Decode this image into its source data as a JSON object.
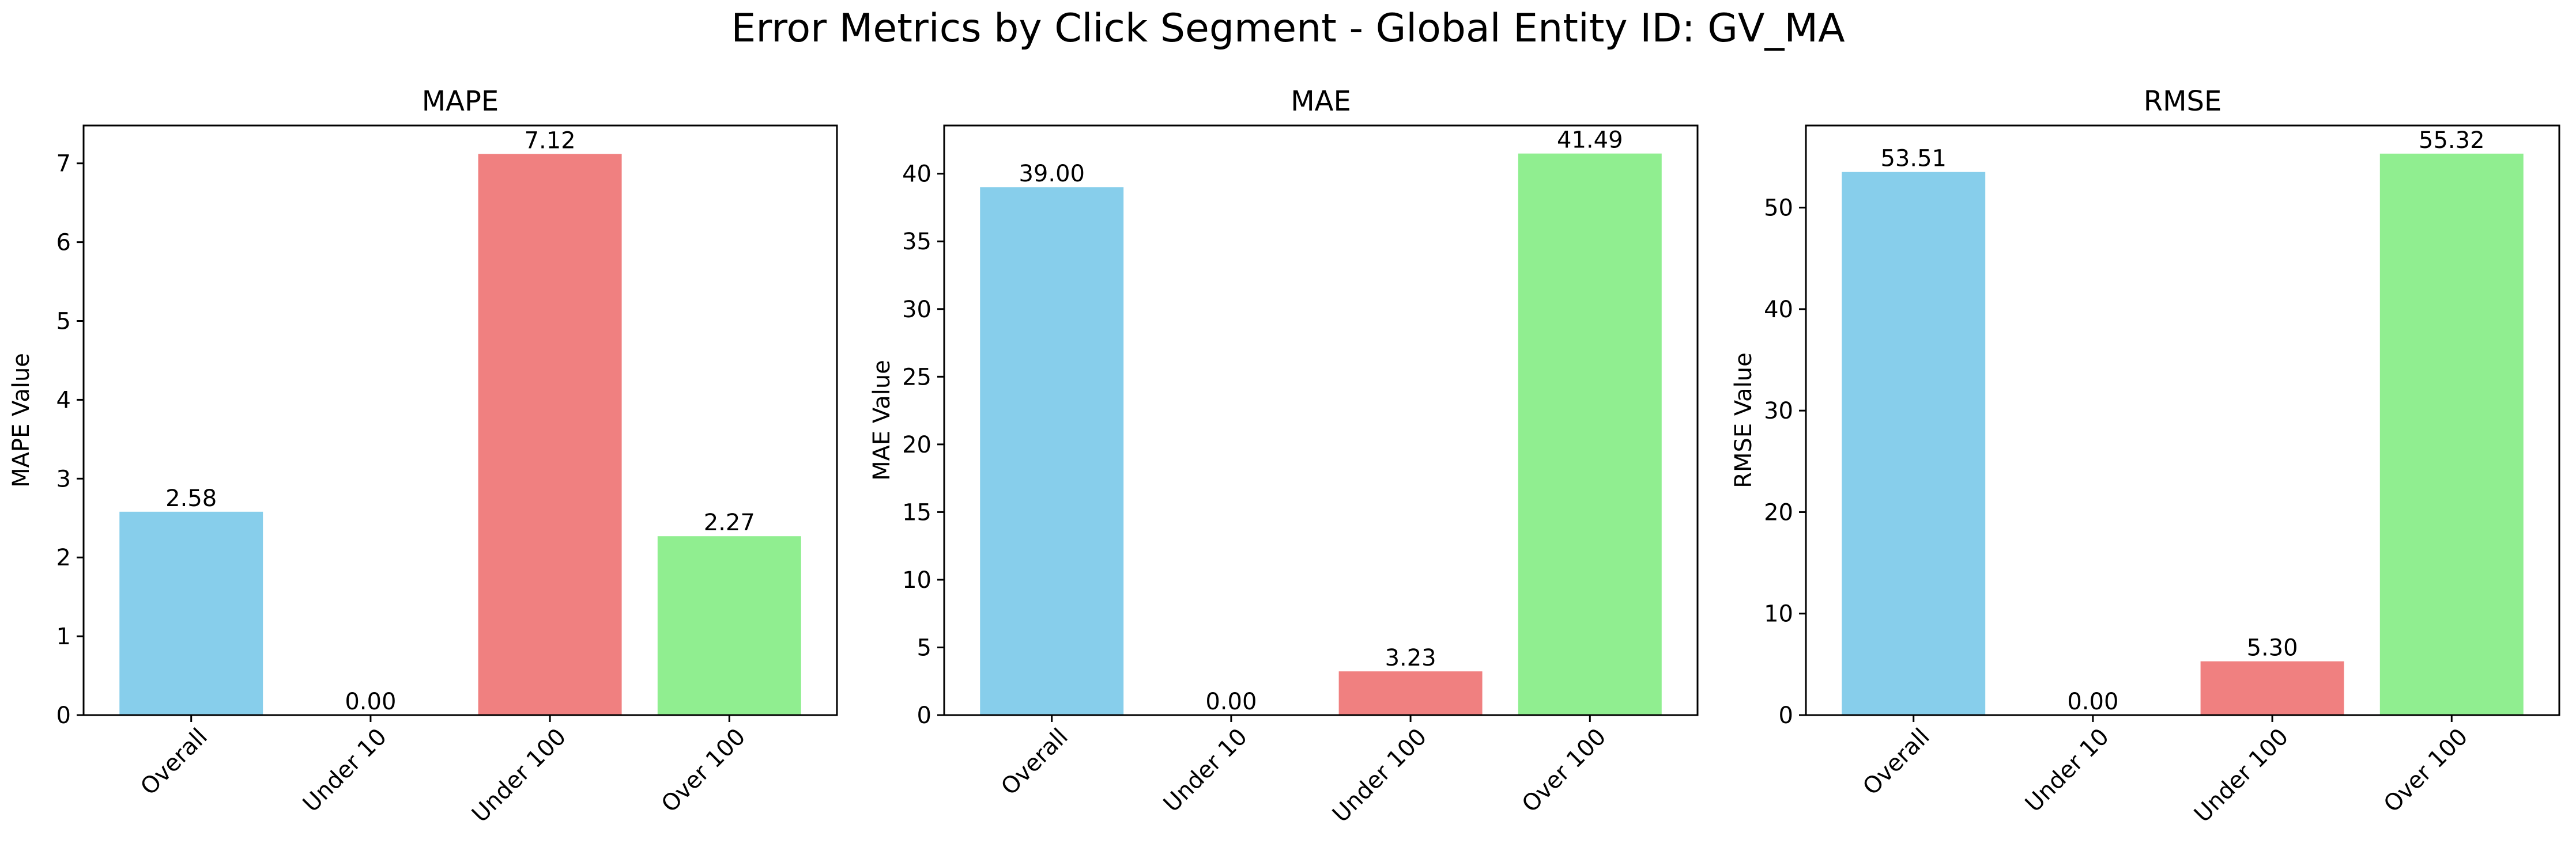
{
  "figure": {
    "suptitle": "Error Metrics by Click Segment - Global Entity ID: GV_MA"
  },
  "colors": [
    "#87CEEB",
    "#F08080",
    "#F08080",
    "#90EE90"
  ],
  "chart_data": [
    {
      "type": "bar",
      "title": "MAPE",
      "xlabel": "",
      "ylabel": "MAPE Value",
      "categories": [
        "Overall",
        "Under 10",
        "Under 100",
        "Over 100"
      ],
      "values": [
        2.58,
        0.0,
        7.12,
        2.27
      ],
      "value_labels": [
        "2.58",
        "0.00",
        "7.12",
        "2.27"
      ],
      "ylim": [
        0,
        7.48
      ],
      "yticks": [
        0,
        1,
        2,
        3,
        4,
        5,
        6,
        7
      ],
      "bar_colors": [
        "#87CEEB",
        "#87CEEB",
        "#F08080",
        "#90EE90"
      ],
      "grid": false,
      "legend": "none"
    },
    {
      "type": "bar",
      "title": "MAE",
      "xlabel": "",
      "ylabel": "MAE Value",
      "categories": [
        "Overall",
        "Under 10",
        "Under 100",
        "Over 100"
      ],
      "values": [
        39.0,
        0.0,
        3.23,
        41.49
      ],
      "value_labels": [
        "39.00",
        "0.00",
        "3.23",
        "41.49"
      ],
      "ylim": [
        0,
        43.56
      ],
      "yticks": [
        0,
        5,
        10,
        15,
        20,
        25,
        30,
        35,
        40
      ],
      "bar_colors": [
        "#87CEEB",
        "#87CEEB",
        "#F08080",
        "#90EE90"
      ],
      "grid": false,
      "legend": "none"
    },
    {
      "type": "bar",
      "title": "RMSE",
      "xlabel": "",
      "ylabel": "RMSE Value",
      "categories": [
        "Overall",
        "Under 10",
        "Under 100",
        "Over 100"
      ],
      "values": [
        53.51,
        0.0,
        5.3,
        55.32
      ],
      "value_labels": [
        "53.51",
        "0.00",
        "5.30",
        "55.32"
      ],
      "ylim": [
        0,
        58.09
      ],
      "yticks": [
        0,
        10,
        20,
        30,
        40,
        50
      ],
      "bar_colors": [
        "#87CEEB",
        "#87CEEB",
        "#F08080",
        "#90EE90"
      ],
      "grid": false,
      "legend": "none"
    }
  ]
}
